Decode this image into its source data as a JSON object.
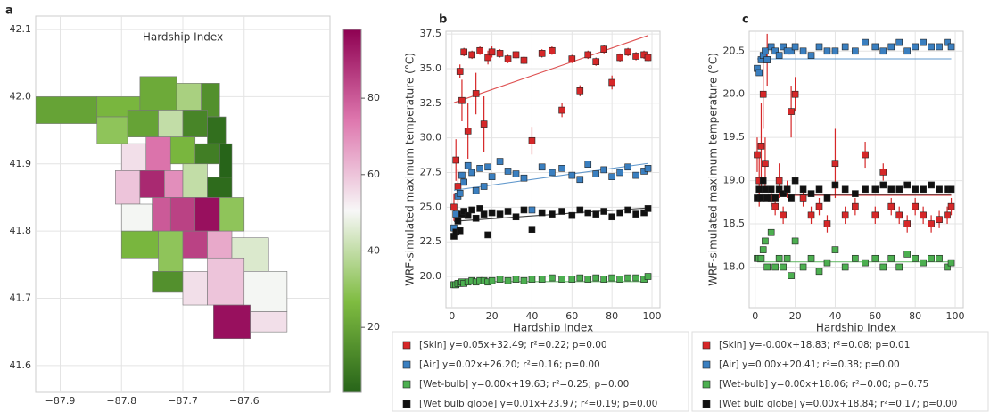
{
  "chart_data": [
    {
      "type": "choropleth",
      "panel": "a",
      "title": "Hardship Index",
      "xlim": [
        -87.94,
        -87.46
      ],
      "ylim": [
        41.56,
        42.12
      ],
      "xticks": [
        {
          "value": -87.9,
          "label": "−87.9"
        },
        {
          "value": -87.8,
          "label": "−87.8"
        },
        {
          "value": -87.7,
          "label": "−87.7"
        },
        {
          "value": -87.6,
          "label": "−87.6"
        }
      ],
      "yticks": [
        41.6,
        41.7,
        41.8,
        41.9,
        {
          "value": 42,
          "label": "42.0"
        },
        42.1
      ],
      "clim": [
        3,
        98
      ],
      "cticks": [
        20,
        40,
        60,
        80
      ],
      "grid": true,
      "values": [
        20,
        25,
        22,
        35,
        15,
        30,
        20,
        40,
        12,
        6,
        55,
        75,
        25,
        10,
        3,
        60,
        90,
        70,
        40,
        5,
        50,
        80,
        85,
        95,
        30,
        25,
        30,
        85,
        65,
        45,
        15,
        55,
        60,
        50,
        95,
        55
      ]
    },
    {
      "type": "scatter",
      "panel": "b",
      "xlabel": "Hardship Index",
      "ylabel": "WRF-simulated maximum temperature (°C)",
      "xlim": [
        -3,
        104
      ],
      "ylim": [
        17.75,
        37.7
      ],
      "grid": true,
      "xticks": [
        0,
        20,
        40,
        60,
        80,
        100
      ],
      "yticks": [
        {
          "value": 20,
          "label": "20.0"
        },
        22.5,
        {
          "value": 25,
          "label": "25.0"
        },
        27.5,
        {
          "value": 30,
          "label": "30.0"
        },
        32.5,
        {
          "value": 35,
          "label": "35.0"
        },
        37.5
      ],
      "x": [
        1,
        2,
        3,
        4,
        5,
        6,
        8,
        10,
        12,
        14,
        16,
        18,
        20,
        24,
        28,
        32,
        36,
        40,
        45,
        50,
        55,
        60,
        64,
        68,
        72,
        76,
        80,
        84,
        88,
        92,
        96,
        98
      ],
      "series": [
        {
          "name": "[Skin] y=0.05x+32.49; r²=0.22; p=0.00",
          "color": "#d62728",
          "fit": [
            0.05,
            32.49
          ],
          "values": [
            25.0,
            28.4,
            26.5,
            34.8,
            32.7,
            36.2,
            30.5,
            36.0,
            33.2,
            36.3,
            31.0,
            35.8,
            36.2,
            36.1,
            35.7,
            36.0,
            35.6,
            29.8,
            36.1,
            36.3,
            32.0,
            35.7,
            33.4,
            36.0,
            35.5,
            36.4,
            34.0,
            35.8,
            36.2,
            35.9,
            36.0,
            35.8
          ],
          "errors": [
            1.0,
            1.5,
            1.2,
            0.5,
            1.5,
            0.3,
            2.0,
            0.3,
            1.5,
            0.3,
            2.0,
            0.5,
            0.4,
            0.3,
            0.3,
            0.3,
            0.3,
            1.0,
            0.3,
            0.3,
            0.5,
            0.3,
            0.4,
            0.3,
            0.3,
            0.3,
            0.5,
            0.3,
            0.3,
            0.3,
            0.3,
            0.3
          ]
        },
        {
          "name": "[Air] y=0.02x+26.20; r²=0.16; p=0.00",
          "color": "#3a7fc0",
          "fit": [
            0.02,
            26.2
          ],
          "values": [
            23.5,
            24.5,
            25.8,
            26.0,
            27.3,
            26.8,
            28.0,
            27.5,
            26.2,
            27.8,
            26.5,
            27.9,
            27.2,
            28.3,
            27.6,
            27.4,
            27.1,
            24.8,
            27.9,
            27.5,
            27.8,
            27.3,
            27.0,
            28.1,
            27.4,
            27.7,
            27.2,
            27.5,
            27.9,
            27.3,
            27.6,
            27.8
          ]
        },
        {
          "name": "[Wet-bulb] y=0.00x+19.63; r²=0.25; p=0.00",
          "color": "#4caf50",
          "fit": [
            0,
            19.63
          ],
          "values": [
            19.4,
            19.4,
            19.5,
            19.5,
            19.6,
            19.5,
            19.6,
            19.7,
            19.6,
            19.7,
            19.7,
            19.6,
            19.7,
            19.8,
            19.7,
            19.8,
            19.7,
            19.8,
            19.8,
            19.9,
            19.8,
            19.8,
            19.9,
            19.8,
            19.9,
            19.8,
            19.9,
            19.8,
            19.9,
            19.9,
            19.8,
            20.0
          ]
        },
        {
          "name": "[Wet bulb globe] y=0.01x+23.97; r²=0.19; p=0.00",
          "color": "#111111",
          "fit": [
            0.01,
            23.97
          ],
          "values": [
            22.9,
            23.2,
            24.0,
            23.3,
            24.5,
            24.7,
            24.4,
            24.8,
            24.2,
            24.9,
            24.5,
            23.0,
            24.6,
            24.5,
            24.7,
            24.3,
            24.8,
            23.4,
            24.6,
            24.5,
            24.7,
            24.4,
            24.8,
            24.6,
            24.5,
            24.7,
            24.3,
            24.6,
            24.8,
            24.5,
            24.6,
            24.9
          ]
        }
      ]
    },
    {
      "type": "scatter",
      "panel": "c",
      "xlabel": "Hardship Index",
      "ylabel": "WRF-simulated maximum temperature (°C)",
      "xlim": [
        -3,
        104
      ],
      "ylim": [
        17.53,
        20.73
      ],
      "grid": true,
      "xticks": [
        0,
        20,
        40,
        60,
        80,
        100
      ],
      "yticks": [
        {
          "value": 18,
          "label": "18.0"
        },
        18.5,
        {
          "value": 19,
          "label": "19.0"
        },
        19.5,
        {
          "value": 20,
          "label": "20.0"
        },
        20.5
      ],
      "x": [
        1,
        2,
        3,
        4,
        5,
        6,
        8,
        10,
        12,
        14,
        16,
        18,
        20,
        24,
        28,
        32,
        36,
        40,
        45,
        50,
        55,
        60,
        64,
        68,
        72,
        76,
        80,
        84,
        88,
        92,
        96,
        98
      ],
      "series": [
        {
          "name": "[Skin] y=-0.00x+18.83; r²=0.08; p=0.01",
          "color": "#d62728",
          "fit": [
            0,
            18.83
          ],
          "values": [
            19.3,
            19.0,
            19.4,
            20.0,
            19.2,
            20.4,
            18.8,
            18.7,
            19.0,
            18.6,
            18.9,
            19.8,
            20.0,
            18.8,
            18.6,
            18.7,
            18.5,
            19.2,
            18.6,
            18.7,
            19.3,
            18.6,
            19.1,
            18.7,
            18.6,
            18.5,
            18.7,
            18.6,
            18.5,
            18.55,
            18.6,
            18.7
          ],
          "errors": [
            0.2,
            0.3,
            0.5,
            0.4,
            0.3,
            0.3,
            0.1,
            0.1,
            0.2,
            0.1,
            0.1,
            0.3,
            0.2,
            0.1,
            0.1,
            0.1,
            0.1,
            0.4,
            0.1,
            0.1,
            0.15,
            0.1,
            0.1,
            0.1,
            0.1,
            0.1,
            0.1,
            0.1,
            0.1,
            0.1,
            0.1,
            0.1
          ]
        },
        {
          "name": "[Air] y=0.00x+20.41; r²=0.38; p=0.00",
          "color": "#3a7fc0",
          "fit": [
            0,
            20.41
          ],
          "values": [
            20.3,
            20.25,
            20.4,
            20.45,
            20.5,
            20.4,
            20.55,
            20.5,
            20.45,
            20.55,
            20.5,
            20.5,
            20.55,
            20.5,
            20.45,
            20.55,
            20.5,
            20.5,
            20.55,
            20.5,
            20.6,
            20.55,
            20.5,
            20.55,
            20.6,
            20.5,
            20.55,
            20.6,
            20.55,
            20.55,
            20.6,
            20.55
          ]
        },
        {
          "name": "[Wet-bulb] y=0.00x+18.06; r²=0.00; p=0.75",
          "color": "#4caf50",
          "fit": [
            0,
            18.06
          ],
          "values": [
            18.1,
            18.1,
            18.1,
            18.2,
            18.3,
            18.0,
            18.4,
            18.0,
            18.1,
            18.0,
            18.1,
            17.9,
            18.3,
            18.0,
            18.1,
            17.95,
            18.05,
            18.2,
            18.0,
            18.1,
            18.05,
            18.1,
            18.0,
            18.1,
            18.0,
            18.15,
            18.1,
            18.05,
            18.1,
            18.1,
            18.0,
            18.05
          ]
        },
        {
          "name": "[Wet bulb globe] y=0.00x+18.84; r²=0.17; p=0.00",
          "color": "#111111",
          "fit": [
            0,
            18.84
          ],
          "values": [
            18.8,
            18.9,
            18.8,
            19.0,
            18.9,
            18.8,
            18.9,
            18.8,
            18.9,
            18.85,
            18.9,
            18.8,
            19.0,
            18.9,
            18.85,
            18.9,
            18.8,
            18.95,
            18.9,
            18.85,
            18.9,
            18.9,
            18.95,
            18.9,
            18.9,
            18.95,
            18.9,
            18.9,
            18.95,
            18.9,
            18.9,
            18.9
          ]
        }
      ]
    }
  ]
}
